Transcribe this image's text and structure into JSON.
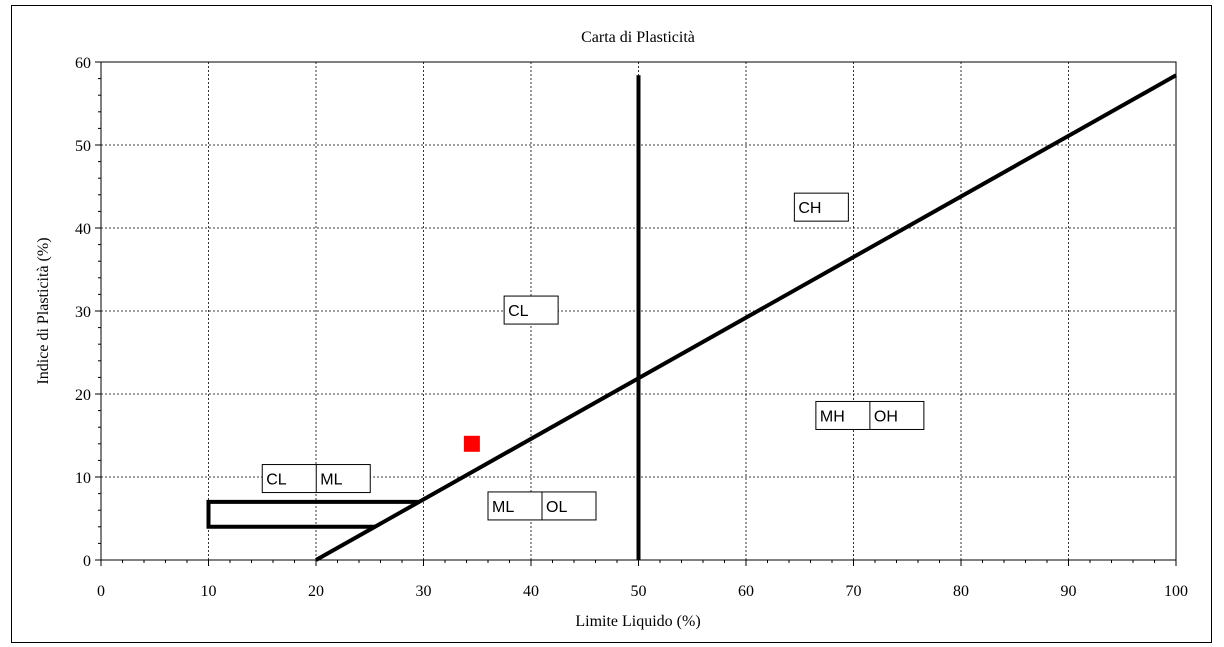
{
  "chart_data": {
    "type": "scatter",
    "title": "Carta di Plasticità",
    "xlabel": "Limite Liquido (%)",
    "ylabel": "Indice di Plasticità (%)",
    "xlim": [
      0,
      100
    ],
    "ylim": [
      0,
      60
    ],
    "x_ticks": [
      0,
      10,
      20,
      30,
      40,
      50,
      60,
      70,
      80,
      90,
      100
    ],
    "y_ticks": [
      0,
      10,
      20,
      30,
      40,
      50,
      60
    ],
    "grid": true,
    "point_color": "#ff0000",
    "points": [
      {
        "x": 34.5,
        "y": 14
      }
    ],
    "reference_lines": [
      {
        "kind": "A-line",
        "points": [
          [
            20,
            0
          ],
          [
            100,
            58.4
          ]
        ]
      },
      {
        "kind": "liquid-limit-50",
        "points": [
          [
            50,
            0
          ],
          [
            50,
            58.4
          ]
        ]
      },
      {
        "kind": "CL-ML-band",
        "points": [
          [
            10,
            7
          ],
          [
            29.6,
            7
          ],
          [
            29.6,
            7
          ],
          [
            10,
            7
          ],
          [
            10,
            4
          ],
          [
            25.5,
            4
          ]
        ]
      }
    ],
    "zone_labels": [
      {
        "cells": [
          "CH"
        ],
        "x": 64.5,
        "y": 44.2
      },
      {
        "cells": [
          "CL"
        ],
        "x": 37.5,
        "y": 31.8
      },
      {
        "cells": [
          "MH",
          "OH"
        ],
        "x": 66.5,
        "y": 19.1
      },
      {
        "cells": [
          "CL",
          "ML"
        ],
        "x": 15,
        "y": 11.5
      },
      {
        "cells": [
          "ML",
          "OL"
        ],
        "x": 36,
        "y": 8.2
      }
    ]
  }
}
